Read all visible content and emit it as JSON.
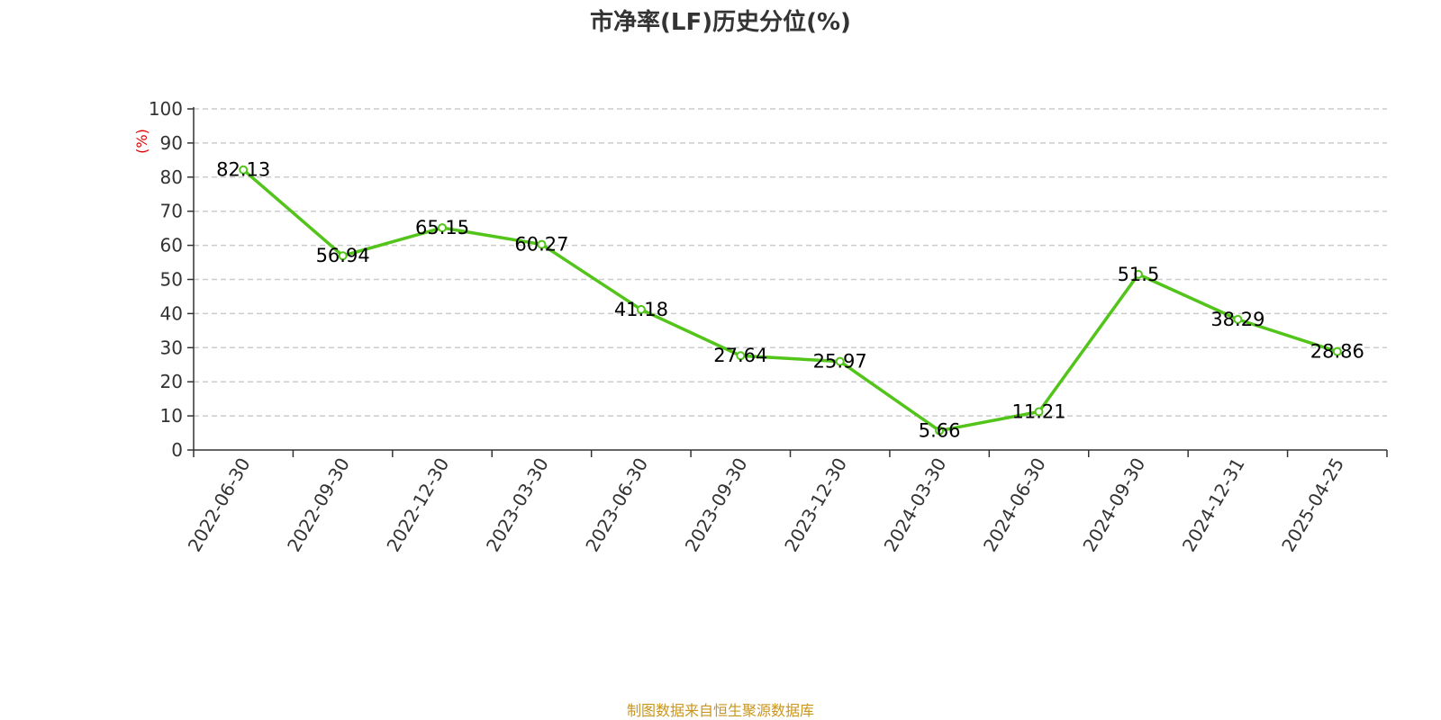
{
  "chart_data": {
    "type": "line",
    "title": "市净率(LF)历史分位(%)",
    "ylabel": "(%)",
    "ylim": [
      0,
      100
    ],
    "yticks": [
      0,
      10,
      20,
      30,
      40,
      50,
      60,
      70,
      80,
      90,
      100
    ],
    "categories": [
      "2022-06-30",
      "2022-09-30",
      "2022-12-30",
      "2023-03-30",
      "2023-06-30",
      "2023-09-30",
      "2023-12-30",
      "2024-03-30",
      "2024-06-30",
      "2024-09-30",
      "2024-12-31",
      "2025-04-25"
    ],
    "values": [
      82.13,
      56.94,
      65.15,
      60.27,
      41.18,
      27.64,
      25.97,
      5.66,
      11.21,
      51.5,
      38.29,
      28.86
    ],
    "data_labels": [
      "82.13",
      "56.94",
      "65.15",
      "60.27",
      "41.18",
      "27.64",
      "25.97",
      "5.66",
      "11.21",
      "51.5",
      "38.29",
      "28.86"
    ],
    "grid": true,
    "line_color": "#52c41a",
    "unit_color": "#e00000"
  },
  "footer": {
    "source": "制图数据来自恒生聚源数据库"
  }
}
